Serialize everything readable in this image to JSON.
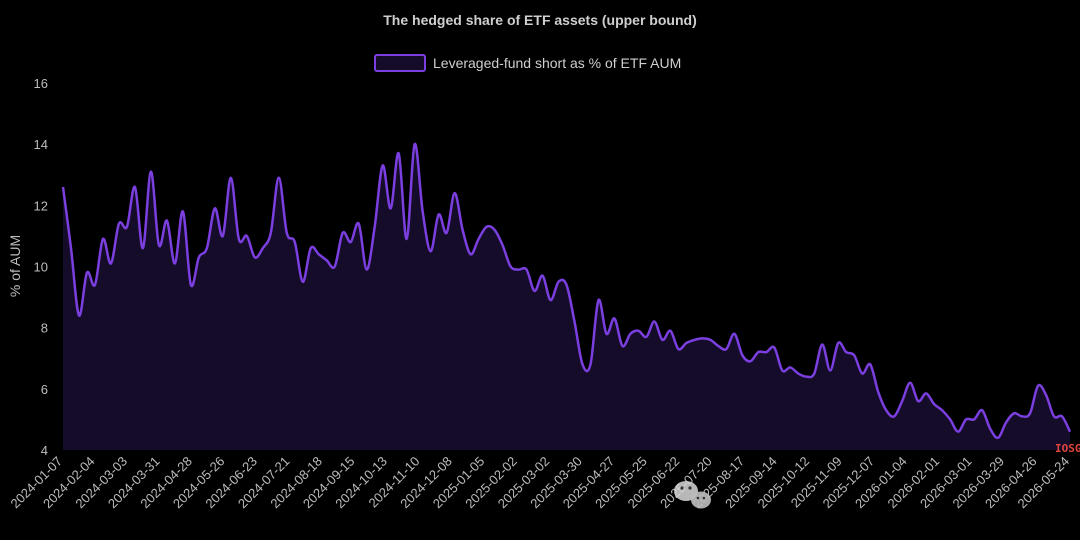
{
  "chart_data": {
    "type": "area",
    "title": "The hedged share of ETF assets (upper bound)",
    "xlabel": "",
    "ylabel": "% of AUM",
    "ylim": [
      4,
      16
    ],
    "yticks": [
      4,
      6,
      8,
      10,
      12,
      14,
      16
    ],
    "grid": false,
    "legend_position": "top-center",
    "x_tick_labels": [
      "2024-01-07",
      "2024-02-04",
      "2024-03-03",
      "2024-03-31",
      "2024-04-28",
      "2024-05-26",
      "2024-06-23",
      "2024-07-21",
      "2024-08-18",
      "2024-09-15",
      "2024-10-13",
      "2024-11-10",
      "2024-12-08",
      "2025-01-05",
      "2025-02-02",
      "2025-03-02",
      "2025-03-30",
      "2025-04-27",
      "2025-05-25",
      "2025-06-22",
      "2025-07-20",
      "2025-08-17",
      "2025-09-14",
      "2025-10-12",
      "2025-11-09",
      "2025-12-07",
      "2026-01-04",
      "2026-02-01",
      "2026-03-01",
      "2026-03-29",
      "2026-04-26",
      "2026-05-24"
    ],
    "series": [
      {
        "name": "Leveraged-fund short as % of ETF AUM",
        "color": "#7b3fe0",
        "fill": "#150c2a",
        "values": [
          12.6,
          10.6,
          8.4,
          9.8,
          9.4,
          10.9,
          10.1,
          11.4,
          11.3,
          12.6,
          10.6,
          13.1,
          10.7,
          11.5,
          10.1,
          11.8,
          9.4,
          10.3,
          10.6,
          11.9,
          11.0,
          12.9,
          10.9,
          11.0,
          10.3,
          10.6,
          11.1,
          12.9,
          11.1,
          10.8,
          9.5,
          10.6,
          10.4,
          10.2,
          10.0,
          11.1,
          10.8,
          11.4,
          9.9,
          11.3,
          13.3,
          11.9,
          13.7,
          10.9,
          14.0,
          11.8,
          10.5,
          11.7,
          11.1,
          12.4,
          11.2,
          10.4,
          10.9,
          11.3,
          11.2,
          10.7,
          10.0,
          9.9,
          9.9,
          9.2,
          9.7,
          8.9,
          9.5,
          9.4,
          8.2,
          6.8,
          6.8,
          8.9,
          7.8,
          8.3,
          7.4,
          7.8,
          7.9,
          7.7,
          8.2,
          7.6,
          7.9,
          7.3,
          7.5,
          7.6,
          7.65,
          7.6,
          7.4,
          7.3,
          7.8,
          7.1,
          6.9,
          7.2,
          7.2,
          7.35,
          6.6,
          6.7,
          6.5,
          6.4,
          6.5,
          7.45,
          6.6,
          7.5,
          7.2,
          7.1,
          6.5,
          6.8,
          5.9,
          5.3,
          5.1,
          5.6,
          6.2,
          5.6,
          5.85,
          5.5,
          5.3,
          5.0,
          4.6,
          5.0,
          5.0,
          5.3,
          4.7,
          4.4,
          4.9,
          5.2,
          5.1,
          5.2,
          6.1,
          5.8,
          5.1,
          5.1,
          4.6
        ]
      }
    ]
  },
  "watermark": {
    "text": "IOSG",
    "icon": "wechat-icon"
  }
}
